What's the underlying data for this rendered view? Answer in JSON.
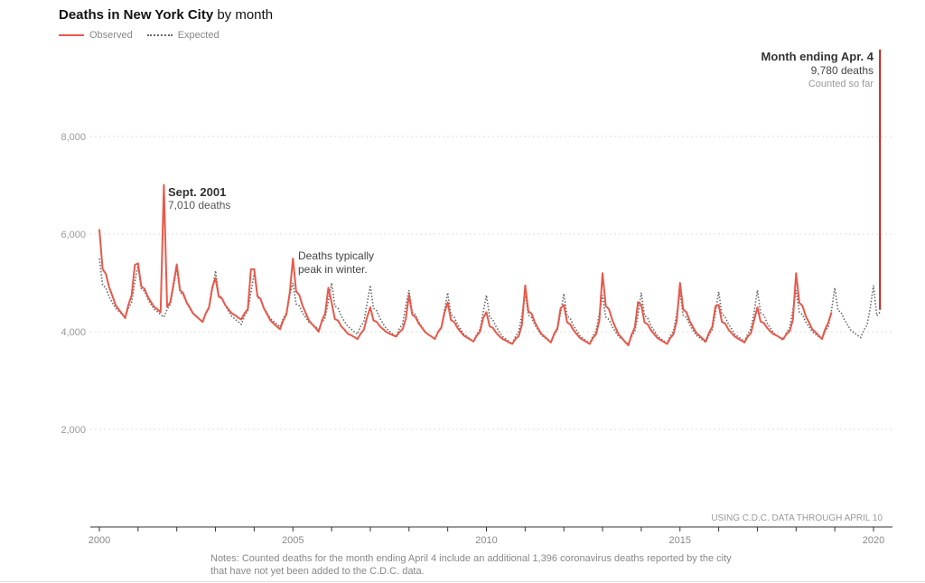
{
  "title": {
    "bold": "Deaths in New York City",
    "rest": " by month"
  },
  "legend": {
    "observed": "Observed",
    "expected": "Expected"
  },
  "source": "USING C.D.C. DATA THROUGH APRIL 10",
  "notes": "Notes: Counted deaths for the month ending April 4 include an additional 1,396 coronavirus deaths reported by the city that have not yet been added to the C.D.C. data.",
  "colors": {
    "observed": "#e8594a",
    "expected": "#666666",
    "latest": "#c0241b",
    "grid": "#dddddd"
  },
  "annotations": {
    "sept2001": {
      "title": "Sept. 2001",
      "text": "7,010 deaths"
    },
    "winter": {
      "line1": "Deaths typically",
      "line2": "peak in winter."
    },
    "latest": {
      "title": "Month ending Apr. 4",
      "text": "9,780 deaths",
      "sub": "Counted so far"
    }
  },
  "chart_data": {
    "type": "line",
    "title": "Deaths in New York City by month",
    "x_start": "2000-01",
    "x_interval": "month",
    "x_ticks": [
      "2000",
      "2005",
      "2010",
      "2015",
      "2020"
    ],
    "y_ticks": [
      2000,
      4000,
      6000,
      8000
    ],
    "y_tick_labels": [
      "2,000",
      "4,000",
      "6,000",
      "8,000"
    ],
    "ylim": [
      0,
      10000
    ],
    "xlim": [
      2000,
      2020.4
    ],
    "grid": "horizontal dotted",
    "legend_position": "top-left",
    "series": [
      {
        "name": "Observed",
        "style": "solid",
        "values": [
          6100,
          5280,
          5190,
          4920,
          4740,
          4550,
          4460,
          4370,
          4280,
          4550,
          4740,
          5370,
          5400,
          4930,
          4880,
          4720,
          4610,
          4510,
          4460,
          4400,
          7010,
          4510,
          4610,
          4980,
          5380,
          4850,
          4790,
          4610,
          4500,
          4380,
          4320,
          4260,
          4200,
          4380,
          4500,
          4910,
          5100,
          4720,
          4680,
          4550,
          4460,
          4380,
          4340,
          4290,
          4250,
          4380,
          4460,
          5280,
          5280,
          4730,
          4670,
          4480,
          4360,
          4230,
          4170,
          4110,
          4050,
          4230,
          4360,
          4790,
          5500,
          4830,
          4750,
          4530,
          4380,
          4230,
          4150,
          4080,
          4000,
          4230,
          4380,
          4900,
          4600,
          4260,
          4230,
          4110,
          4040,
          3960,
          3930,
          3890,
          3850,
          3960,
          4040,
          4300,
          4500,
          4230,
          4200,
          4110,
          4050,
          3990,
          3960,
          3930,
          3900,
          3990,
          4050,
          4260,
          4750,
          4350,
          4300,
          4170,
          4080,
          3990,
          3940,
          3900,
          3850,
          3990,
          4080,
          4390,
          4600,
          4240,
          4200,
          4080,
          4000,
          3920,
          3880,
          3840,
          3800,
          3920,
          4000,
          4280,
          4400,
          4110,
          4080,
          3980,
          3910,
          3850,
          3820,
          3780,
          3750,
          3850,
          3910,
          4140,
          4950,
          4420,
          4370,
          4190,
          4070,
          3960,
          3900,
          3840,
          3780,
          3960,
          4070,
          4480,
          4550,
          4190,
          4150,
          4030,
          3950,
          3870,
          3830,
          3790,
          3750,
          3870,
          3950,
          4230,
          5200,
          4530,
          4460,
          4240,
          4090,
          3940,
          3870,
          3790,
          3720,
          3940,
          4090,
          4610,
          4550,
          4190,
          4150,
          4030,
          3950,
          3870,
          3830,
          3790,
          3750,
          3870,
          3950,
          4230,
          5000,
          4460,
          4400,
          4220,
          4100,
          3980,
          3920,
          3860,
          3800,
          3980,
          4100,
          4520,
          4550,
          4200,
          4170,
          4050,
          3970,
          3900,
          3860,
          3820,
          3780,
          3900,
          3970,
          4240,
          4500,
          4210,
          4180,
          4080,
          4010,
          3950,
          3920,
          3880,
          3850,
          3950,
          4010,
          4240,
          5200,
          4590,
          4530,
          4320,
          4190,
          4050,
          3990,
          3920,
          3850,
          4050,
          4190,
          4400
        ]
      },
      {
        "name": "Expected",
        "style": "dotted",
        "values": [
          5500,
          4960,
          4900,
          4720,
          4600,
          4480,
          4420,
          4360,
          4300,
          4480,
          4600,
          5020,
          5350,
          4880,
          4830,
          4670,
          4560,
          4460,
          4410,
          4350,
          4300,
          4460,
          4560,
          4930,
          5300,
          4810,
          4750,
          4590,
          4480,
          4370,
          4310,
          4260,
          4200,
          4370,
          4480,
          4860,
          5250,
          4760,
          4700,
          4540,
          4430,
          4320,
          4260,
          4210,
          4150,
          4320,
          4430,
          4810,
          5200,
          4710,
          4650,
          4490,
          4380,
          4270,
          4210,
          4160,
          4100,
          4270,
          4380,
          4760,
          5000,
          4570,
          4530,
          4380,
          4290,
          4190,
          4150,
          4100,
          4050,
          4190,
          4290,
          4620,
          5000,
          4530,
          4480,
          4320,
          4210,
          4110,
          4060,
          4000,
          3950,
          4110,
          4210,
          4580,
          4950,
          4480,
          4430,
          4270,
          4160,
          4060,
          4010,
          3950,
          3900,
          4060,
          4160,
          4530,
          4850,
          4400,
          4350,
          4200,
          4100,
          4000,
          3950,
          3900,
          3850,
          4000,
          4100,
          4450,
          4800,
          4350,
          4300,
          4150,
          4050,
          3950,
          3900,
          3850,
          3800,
          3950,
          4050,
          4400,
          4750,
          4300,
          4250,
          4100,
          4000,
          3900,
          3850,
          3800,
          3750,
          3900,
          4000,
          4350,
          4800,
          4340,
          4290,
          4140,
          4040,
          3930,
          3880,
          3830,
          3780,
          3930,
          4040,
          4390,
          4780,
          4320,
          4270,
          4120,
          4020,
          3910,
          3860,
          3810,
          3760,
          3910,
          4020,
          4370,
          4750,
          4300,
          4250,
          4100,
          4000,
          3900,
          3850,
          3800,
          3750,
          3900,
          4000,
          4350,
          4800,
          4330,
          4280,
          4120,
          4020,
          3920,
          3860,
          3810,
          3760,
          3920,
          4020,
          4380,
          4800,
          4340,
          4290,
          4140,
          4040,
          3930,
          3880,
          3830,
          3780,
          3930,
          4040,
          4390,
          4820,
          4360,
          4310,
          4160,
          4060,
          3950,
          3900,
          3850,
          3800,
          3950,
          4060,
          4410,
          4850,
          4390,
          4340,
          4180,
          4080,
          3980,
          3920,
          3870,
          3820,
          3980,
          4080,
          4440,
          4850,
          4400,
          4350,
          4200,
          4100,
          4000,
          3950,
          3900,
          3850,
          4000,
          4100,
          4450,
          4900,
          4440,
          4390,
          4240,
          4140,
          4030,
          3980,
          3930,
          3880,
          4030,
          4140,
          4490,
          4950,
          4330,
          4400
        ]
      }
    ],
    "latest": {
      "period": "Month ending Apr. 4, 2020",
      "from": 4450,
      "value": 9780
    }
  }
}
